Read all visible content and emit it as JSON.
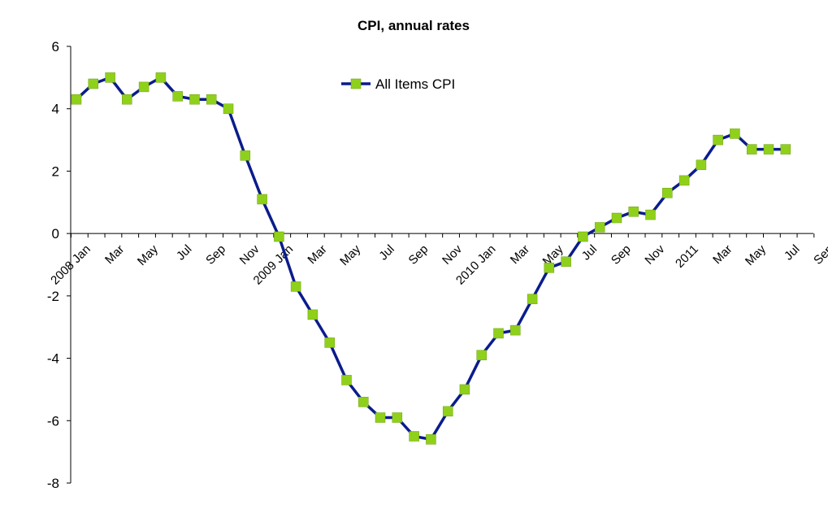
{
  "chart_data": {
    "type": "line",
    "title": "CPI, annual rates",
    "xlabel": "",
    "ylabel": "",
    "ylim": [
      -8,
      6
    ],
    "yticks": [
      6,
      4,
      2,
      0,
      -2,
      -4,
      -6,
      -8
    ],
    "ytick_labels": [
      "6",
      "4",
      "2",
      "0",
      "-2",
      "-4",
      "-6",
      "-8"
    ],
    "legend_position": "top-center",
    "grid": false,
    "x_tick_labels": [
      {
        "label": "2008 Jan",
        "index": 0
      },
      {
        "label": "Mar",
        "index": 2
      },
      {
        "label": "May",
        "index": 4
      },
      {
        "label": "Jul",
        "index": 6
      },
      {
        "label": "Sep",
        "index": 8
      },
      {
        "label": "Nov",
        "index": 10
      },
      {
        "label": "2009 Jan",
        "index": 12
      },
      {
        "label": "Mar",
        "index": 14
      },
      {
        "label": "May",
        "index": 16
      },
      {
        "label": "Jul",
        "index": 18
      },
      {
        "label": "Sep",
        "index": 20
      },
      {
        "label": "Nov",
        "index": 22
      },
      {
        "label": "2010 Jan",
        "index": 24
      },
      {
        "label": "Mar",
        "index": 26
      },
      {
        "label": "May",
        "index": 28
      },
      {
        "label": "Jul",
        "index": 30
      },
      {
        "label": "Sep",
        "index": 32
      },
      {
        "label": "Nov",
        "index": 34
      },
      {
        "label": "2011",
        "index": 36
      },
      {
        "label": "Mar",
        "index": 38
      },
      {
        "label": "May",
        "index": 40
      },
      {
        "label": "Jul",
        "index": 42
      },
      {
        "label": "Sep",
        "index": 44
      }
    ],
    "x_count": 46,
    "series": [
      {
        "name": "All Items CPI",
        "color": "#0a1c8c",
        "marker_color": "#8fd11a",
        "values": [
          4.3,
          4.8,
          5.0,
          4.3,
          4.7,
          5.0,
          4.4,
          4.3,
          4.3,
          4.0,
          2.5,
          1.1,
          -0.1,
          -1.7,
          -2.6,
          -3.5,
          -4.7,
          -5.4,
          -5.9,
          -5.9,
          -6.5,
          -6.6,
          -5.7,
          -5.0,
          -3.9,
          -3.2,
          -3.1,
          -2.1,
          -1.1,
          -0.9,
          -0.1,
          0.2,
          0.5,
          0.7,
          0.6,
          1.3,
          1.7,
          2.2,
          3.0,
          3.2,
          2.7,
          2.7,
          2.7
        ]
      }
    ]
  }
}
